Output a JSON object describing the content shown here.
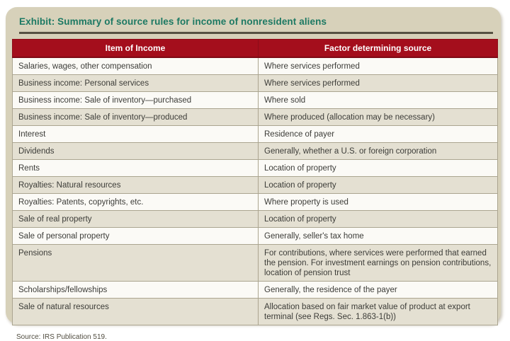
{
  "panel": {
    "title": "Exhibit: Summary of source rules for income of nonresident aliens",
    "source_note": "Source: IRS Publication 519."
  },
  "table": {
    "columns": [
      "Item of Income",
      "Factor determining source"
    ],
    "rows": [
      {
        "item": "Salaries, wages, other compensation",
        "factor": "Where services performed"
      },
      {
        "item": "Business income: Personal services",
        "factor": "Where services performed"
      },
      {
        "item": "Business income: Sale of inventory—purchased",
        "factor": "Where sold"
      },
      {
        "item": "Business income: Sale of inventory—produced",
        "factor": "Where produced (allocation may be necessary)"
      },
      {
        "item": "Interest",
        "factor": "Residence of payer"
      },
      {
        "item": "Dividends",
        "factor": "Generally, whether a U.S. or foreign corporation"
      },
      {
        "item": "Rents",
        "factor": "Location of property"
      },
      {
        "item": "Royalties: Natural resources",
        "factor": "Location of property"
      },
      {
        "item": "Royalties: Patents, copyrights, etc.",
        "factor": "Where property is used"
      },
      {
        "item": "Sale of real property",
        "factor": "Location of property"
      },
      {
        "item": "Sale of personal property",
        "factor": "Generally, seller's tax home"
      },
      {
        "item": "Pensions",
        "factor": "For contributions, where services were performed that earned the pension. For investment earnings on pension contributions, location of pension trust"
      },
      {
        "item": "Scholarships/fellowships",
        "factor": "Generally, the residence of the payer"
      },
      {
        "item": "Sale of natural resources",
        "factor": "Allocation based on fair market value of product at export terminal (see Regs. Sec. 1.863-1(b))"
      }
    ]
  },
  "colors": {
    "panel_background": "#d7d1ba",
    "header_background": "#a40e1c",
    "header_text": "#ffffff",
    "title_text": "#1d7963",
    "rule": "#565142",
    "row_shaded": "#e4e0d2",
    "row_plain": "#fbfaf6",
    "cell_border": "#aba590",
    "body_text": "#3c3c38"
  }
}
